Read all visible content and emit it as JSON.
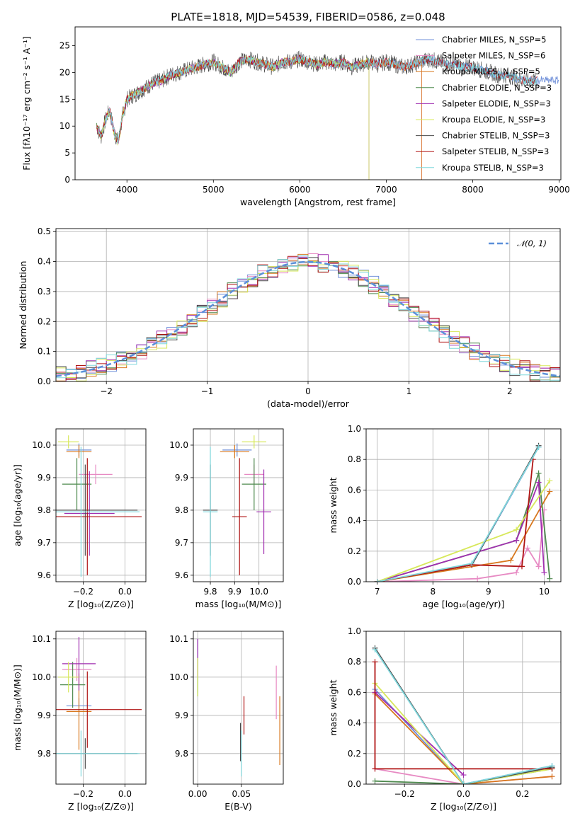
{
  "title": "PLATE=1818, MJD=54539, FIBERID=0586, z=0.048",
  "colors": [
    "#6f8fd9",
    "#e78ac3",
    "#d8781e",
    "#4f8a4f",
    "#a12fb0",
    "#d7e85a",
    "#4a4a4a",
    "#b01515",
    "#7fd7dc"
  ],
  "chart_data": [
    {
      "id": "spectrum",
      "type": "line",
      "xlabel": "wavelength [Angstrom, rest frame]",
      "ylabel": "Flux [fλ10⁻¹⁷ erg cm⁻² s⁻¹ A⁻¹]",
      "xlim": [
        3400,
        9020
      ],
      "ylim": [
        0,
        28.5
      ],
      "xticks": [
        4000,
        5000,
        6000,
        7000,
        8000,
        9000
      ],
      "yticks": [
        0,
        5,
        10,
        15,
        20,
        25
      ],
      "legend_position": "upper right",
      "spectrum_x": [
        3650,
        3700,
        3750,
        3800,
        3850,
        3900,
        3950,
        4000,
        4100,
        4200,
        4300,
        4400,
        4500,
        4600,
        4700,
        4800,
        4900,
        5000,
        5100,
        5200,
        5300,
        5400,
        5500,
        5600,
        5700,
        5800,
        5900,
        6000,
        6100,
        6200,
        6300,
        6400,
        6500,
        6600,
        6700,
        6800,
        6900,
        7000,
        7100,
        7200,
        7300,
        7400,
        7500,
        7600,
        7700,
        7800,
        7900,
        8000,
        8100,
        8200,
        8300,
        8400,
        8500,
        8600,
        8700,
        8800
      ],
      "spectrum_y": [
        10,
        8,
        11,
        13,
        9,
        7,
        12,
        15,
        16,
        17,
        18,
        18.5,
        19.5,
        20,
        20.5,
        21,
        21.5,
        22,
        21,
        20,
        22,
        22.5,
        22,
        21.5,
        21,
        22,
        22,
        22.5,
        22,
        21.5,
        22,
        21.5,
        22,
        21,
        21.5,
        22,
        21.5,
        22,
        21.5,
        21,
        21.5,
        22,
        22.5,
        22,
        21.5,
        21.5,
        21,
        21,
        20.5,
        20,
        19.5,
        19.5,
        19,
        18.5,
        18.5,
        18.5
      ],
      "series": [
        {
          "name": "Chabrier MILES, N_SSP=5",
          "lo": 3650,
          "hi": 9000
        },
        {
          "name": "Salpeter MILES, N_SSP=6",
          "lo": 3650,
          "hi": 7410
        },
        {
          "name": "Kroupa MILES, N_SSP=5",
          "lo": 3650,
          "hi": 7410
        },
        {
          "name": "Chabrier ELODIE, N_SSP=3",
          "lo": 3650,
          "hi": 6800
        },
        {
          "name": "Salpeter ELODIE, N_SSP=3",
          "lo": 3650,
          "hi": 6800
        },
        {
          "name": "Kroupa ELODIE, N_SSP=3",
          "lo": 3650,
          "hi": 6800
        },
        {
          "name": "Chabrier STELIB, N_SSP=3",
          "lo": 3650,
          "hi": 8750
        },
        {
          "name": "Salpeter STELIB, N_SSP=3",
          "lo": 3650,
          "hi": 8750
        },
        {
          "name": "Kroupa STELIB, N_SSP=3",
          "lo": 3650,
          "hi": 8750
        }
      ]
    },
    {
      "id": "residuals",
      "type": "line",
      "xlabel": "(data-model)/error",
      "ylabel": "Normed distribution",
      "xlim": [
        -2.5,
        2.5
      ],
      "ylim": [
        0,
        0.51
      ],
      "xticks": [
        -2,
        -1,
        0,
        1,
        2
      ],
      "yticks": [
        0.0,
        0.1,
        0.2,
        0.3,
        0.4,
        0.5
      ],
      "legend": "𝒩(0, 1)",
      "grid": true
    },
    {
      "id": "age-vs-Z",
      "type": "scatter",
      "xlabel": "Z [log₁₀(Z/Z⊙)]",
      "ylabel": "age  [log₁₀(age/yr)]",
      "xlim": [
        -0.33,
        0.1
      ],
      "ylim": [
        9.58,
        10.05
      ],
      "xticks": [
        -0.2,
        0.0
      ],
      "yticks": [
        9.6,
        9.7,
        9.8,
        9.9,
        10.0
      ],
      "points": [
        {
          "x": -0.22,
          "y": 9.985,
          "xerr": 0.06,
          "yerr": 0.02
        },
        {
          "x": -0.14,
          "y": 9.91,
          "xerr": 0.08,
          "yerr": 0.03
        },
        {
          "x": -0.22,
          "y": 9.98,
          "xerr": 0.06,
          "yerr": 0.02
        },
        {
          "x": -0.23,
          "y": 9.88,
          "xerr": 0.07,
          "yerr": 0.08
        },
        {
          "x": -0.17,
          "y": 9.79,
          "xerr": 0.12,
          "yerr": 0.13
        },
        {
          "x": -0.27,
          "y": 10.01,
          "xerr": 0.05,
          "yerr": 0.02
        },
        {
          "x": -0.19,
          "y": 9.8,
          "xerr": 0.25,
          "yerr": 0.14
        },
        {
          "x": -0.18,
          "y": 9.78,
          "xerr": 0.26,
          "yerr": 0.18
        },
        {
          "x": -0.21,
          "y": 9.795,
          "xerr": 0.28,
          "yerr": 0.2
        }
      ]
    },
    {
      "id": "age-vs-mass",
      "type": "scatter",
      "xlabel": "mass [log₁₀(M/M⊙)]",
      "ylabel": "",
      "xlim": [
        9.73,
        10.1
      ],
      "ylim": [
        9.58,
        10.05
      ],
      "xticks": [
        9.8,
        9.9,
        10.0
      ],
      "yticks": [
        9.6,
        9.7,
        9.8,
        9.9,
        10.0
      ],
      "points": [
        {
          "x": 9.91,
          "y": 9.985,
          "xerr": 0.06,
          "yerr": 0.02
        },
        {
          "x": 9.98,
          "y": 9.91,
          "xerr": 0.04,
          "yerr": 0.03
        },
        {
          "x": 9.9,
          "y": 9.98,
          "xerr": 0.06,
          "yerr": 0.02
        },
        {
          "x": 9.98,
          "y": 9.88,
          "xerr": 0.05,
          "yerr": 0.08
        },
        {
          "x": 10.02,
          "y": 9.795,
          "xerr": 0.03,
          "yerr": 0.13
        },
        {
          "x": 9.98,
          "y": 10.01,
          "xerr": 0.05,
          "yerr": 0.02
        },
        {
          "x": 9.8,
          "y": 9.8,
          "xerr": 0.03,
          "yerr": 0.14
        },
        {
          "x": 9.92,
          "y": 9.78,
          "xerr": 0.03,
          "yerr": 0.18
        },
        {
          "x": 9.8,
          "y": 9.795,
          "xerr": 0.03,
          "yerr": 0.2
        }
      ]
    },
    {
      "id": "weight-vs-age",
      "type": "line",
      "xlabel": "age  [log₁₀(age/yr)]",
      "ylabel": "mass weight",
      "xlim": [
        6.8,
        10.3
      ],
      "ylim": [
        0,
        1.0
      ],
      "xticks": [
        7,
        8,
        9,
        10
      ],
      "yticks": [
        0.0,
        0.2,
        0.4,
        0.6,
        0.8,
        1.0
      ],
      "series": [
        {
          "x": [
            7.0,
            8.7,
            9.9
          ],
          "y": [
            0.0,
            0.11,
            0.88
          ]
        },
        {
          "x": [
            7.0,
            8.8,
            9.5,
            9.7,
            9.9,
            10.0
          ],
          "y": [
            0.0,
            0.02,
            0.06,
            0.22,
            0.1,
            0.47
          ]
        },
        {
          "x": [
            7.0,
            9.4,
            10.1
          ],
          "y": [
            0.0,
            0.14,
            0.59
          ]
        },
        {
          "x": [
            7.0,
            9.5,
            9.9,
            10.1
          ],
          "y": [
            0.0,
            0.27,
            0.71,
            0.02
          ]
        },
        {
          "x": [
            7.0,
            9.5,
            9.9,
            10.0
          ],
          "y": [
            0.0,
            0.27,
            0.65,
            0.06
          ]
        },
        {
          "x": [
            7.0,
            9.5,
            10.1
          ],
          "y": [
            0.0,
            0.34,
            0.66
          ]
        },
        {
          "x": [
            7.0,
            8.7,
            9.9
          ],
          "y": [
            0.0,
            0.11,
            0.89
          ]
        },
        {
          "x": [
            7.0,
            8.7,
            9.6,
            9.8
          ],
          "y": [
            0.0,
            0.11,
            0.1,
            0.8
          ]
        },
        {
          "x": [
            7.0,
            8.7,
            9.9
          ],
          "y": [
            0.0,
            0.12,
            0.88
          ]
        }
      ]
    },
    {
      "id": "mass-vs-Z",
      "type": "scatter",
      "xlabel": "Z [log₁₀(Z/Z⊙)]",
      "ylabel": "mass [log₁₀(M/M⊙)]",
      "xlim": [
        -0.33,
        0.1
      ],
      "ylim": [
        9.72,
        10.12
      ],
      "xticks": [
        -0.2,
        0.0
      ],
      "yticks": [
        9.8,
        9.9,
        10.0,
        10.1
      ],
      "points": [
        {
          "x": -0.22,
          "y": 9.925,
          "xerr": 0.06,
          "yerr": 0.02
        },
        {
          "x": -0.23,
          "y": 10.02,
          "xerr": 0.07,
          "yerr": 0.03
        },
        {
          "x": -0.22,
          "y": 9.91,
          "xerr": 0.06,
          "yerr": 0.1
        },
        {
          "x": -0.25,
          "y": 9.98,
          "xerr": 0.06,
          "yerr": 0.06
        },
        {
          "x": -0.22,
          "y": 10.035,
          "xerr": 0.08,
          "yerr": 0.07
        },
        {
          "x": -0.27,
          "y": 10.0,
          "xerr": 0.05,
          "yerr": 0.04
        },
        {
          "x": -0.19,
          "y": 9.8,
          "xerr": 0.25,
          "yerr": 0.04
        },
        {
          "x": -0.18,
          "y": 9.915,
          "xerr": 0.26,
          "yerr": 0.1
        },
        {
          "x": -0.21,
          "y": 9.8,
          "xerr": 0.28,
          "yerr": 0.06
        }
      ]
    },
    {
      "id": "mass-vs-ebv",
      "type": "scatter",
      "xlabel": "E(B-V)",
      "ylabel": "",
      "xlim": [
        -0.005,
        0.098
      ],
      "ylim": [
        9.72,
        10.12
      ],
      "xticks": [
        0.0,
        0.05
      ],
      "yticks": [
        9.8,
        9.9,
        10.0,
        10.1
      ],
      "points": [
        {
          "x": 0.0,
          "y": 10.03,
          "xerr": 0,
          "yerr": 0.07
        },
        {
          "x": 0.09,
          "y": 9.96,
          "xerr": 0,
          "yerr": 0.07
        },
        {
          "x": 0.094,
          "y": 9.86,
          "xerr": 0,
          "yerr": 0.09
        },
        {
          "x": 0.0,
          "y": 10.0,
          "xerr": 0,
          "yerr": 0.05
        },
        {
          "x": 0.0,
          "y": 10.05,
          "xerr": 0,
          "yerr": 0.05
        },
        {
          "x": 0.0,
          "y": 10.0,
          "xerr": 0,
          "yerr": 0.05
        },
        {
          "x": 0.049,
          "y": 9.83,
          "xerr": 0,
          "yerr": 0.05
        },
        {
          "x": 0.053,
          "y": 9.9,
          "xerr": 0,
          "yerr": 0.05
        },
        {
          "x": 0.05,
          "y": 9.8,
          "xerr": 0,
          "yerr": 0.06
        }
      ]
    },
    {
      "id": "weight-vs-Z",
      "type": "line",
      "xlabel": "Z [log₁₀(Z/Z⊙)]",
      "ylabel": "mass weight",
      "xlim": [
        -0.33,
        0.33
      ],
      "ylim": [
        0,
        1.0
      ],
      "xticks": [
        -0.2,
        0.0,
        0.2
      ],
      "yticks": [
        0.0,
        0.2,
        0.4,
        0.6,
        0.8,
        1.0
      ],
      "series": [
        {
          "x": [
            -0.3,
            0.0,
            0.3
          ],
          "y": [
            0.62,
            0.0,
            0.12
          ]
        },
        {
          "x": [
            -0.3,
            0.0,
            0.3
          ],
          "y": [
            0.1,
            0.0,
            0.05
          ]
        },
        {
          "x": [
            -0.3,
            0.0,
            0.3
          ],
          "y": [
            0.59,
            0.0,
            0.05
          ]
        },
        {
          "x": [
            -0.3,
            0.0,
            0.3
          ],
          "y": [
            0.02,
            0.0,
            0.1
          ]
        },
        {
          "x": [
            -0.3,
            0.0
          ],
          "y": [
            0.6,
            0.06
          ]
        },
        {
          "x": [
            -0.3,
            0.0,
            0.3
          ],
          "y": [
            0.66,
            0.0,
            0.1
          ]
        },
        {
          "x": [
            -0.3,
            0.0,
            0.3
          ],
          "y": [
            0.89,
            0.0,
            0.11
          ]
        },
        {
          "x": [
            -0.3,
            -0.3,
            0.3
          ],
          "y": [
            0.8,
            0.1,
            0.1
          ]
        },
        {
          "x": [
            -0.3,
            0.0,
            0.3
          ],
          "y": [
            0.88,
            0.0,
            0.12
          ]
        }
      ]
    }
  ]
}
